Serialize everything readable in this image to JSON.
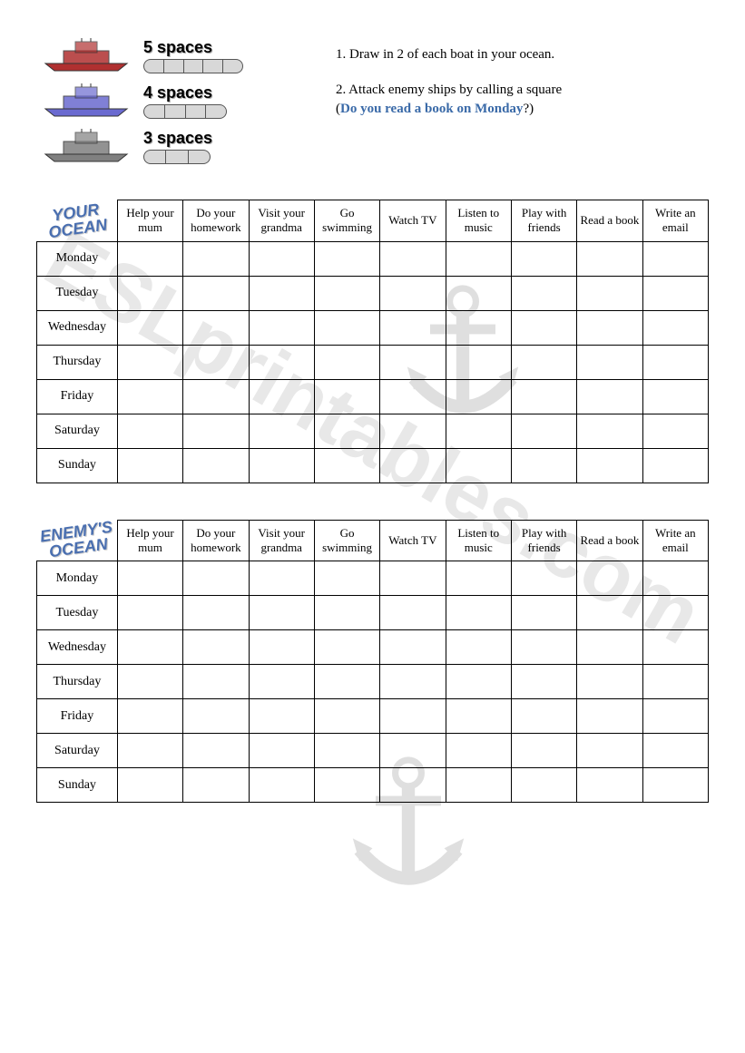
{
  "watermark": "ESLprintables.com",
  "legend": {
    "rows": [
      {
        "label": "5 spaces",
        "segments": 5,
        "pill_width": 110,
        "ship_color": "#b03030"
      },
      {
        "label": "4 spaces",
        "segments": 4,
        "pill_width": 92,
        "ship_color": "#6a6ad0"
      },
      {
        "label": "3 spaces",
        "segments": 3,
        "pill_width": 74,
        "ship_color": "#808080"
      }
    ]
  },
  "instructions": [
    {
      "num": "1.",
      "text": "Draw in 2 of each boat in your ocean.",
      "example": null
    },
    {
      "num": "2.",
      "text": "Attack enemy ships by calling a square",
      "example": "Do you read a book on Monday?"
    }
  ],
  "columns": [
    "Help your mum",
    "Do your homework",
    "Visit your grandma",
    "Go swimming",
    "Watch TV",
    "Listen to music",
    "Play with friends",
    "Read a book",
    "Write an email"
  ],
  "days": [
    "Monday",
    "Tuesday",
    "Wednesday",
    "Thursday",
    "Friday",
    "Saturday",
    "Sunday"
  ],
  "oceans": [
    {
      "title_line1": "YOUR",
      "title_line2": "OCEAN"
    },
    {
      "title_line1": "ENEMY'S",
      "title_line2": "OCEAN"
    }
  ],
  "colors": {
    "example_text": "#3a6aa8",
    "ocean_label": "#4a6fb0",
    "watermark": "#e8e8e8",
    "border": "#000000"
  }
}
